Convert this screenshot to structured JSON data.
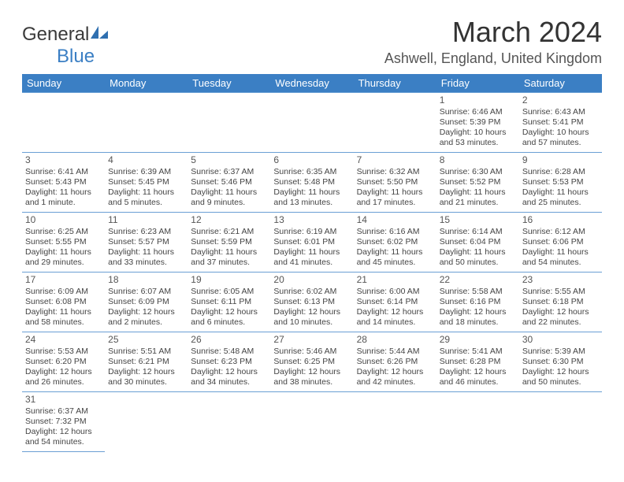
{
  "logo": {
    "part1": "General",
    "part2": "Blue"
  },
  "title": "March 2024",
  "location": "Ashwell, England, United Kingdom",
  "colors": {
    "header_bg": "#3b7fc4",
    "header_text": "#ffffff",
    "border": "#6a9fd4",
    "logo_blue": "#3b7fc4",
    "text": "#444444"
  },
  "weekdays": [
    "Sunday",
    "Monday",
    "Tuesday",
    "Wednesday",
    "Thursday",
    "Friday",
    "Saturday"
  ],
  "weeks": [
    [
      null,
      null,
      null,
      null,
      null,
      {
        "n": "1",
        "sunrise": "Sunrise: 6:46 AM",
        "sunset": "Sunset: 5:39 PM",
        "daylight": "Daylight: 10 hours and 53 minutes."
      },
      {
        "n": "2",
        "sunrise": "Sunrise: 6:43 AM",
        "sunset": "Sunset: 5:41 PM",
        "daylight": "Daylight: 10 hours and 57 minutes."
      }
    ],
    [
      {
        "n": "3",
        "sunrise": "Sunrise: 6:41 AM",
        "sunset": "Sunset: 5:43 PM",
        "daylight": "Daylight: 11 hours and 1 minute."
      },
      {
        "n": "4",
        "sunrise": "Sunrise: 6:39 AM",
        "sunset": "Sunset: 5:45 PM",
        "daylight": "Daylight: 11 hours and 5 minutes."
      },
      {
        "n": "5",
        "sunrise": "Sunrise: 6:37 AM",
        "sunset": "Sunset: 5:46 PM",
        "daylight": "Daylight: 11 hours and 9 minutes."
      },
      {
        "n": "6",
        "sunrise": "Sunrise: 6:35 AM",
        "sunset": "Sunset: 5:48 PM",
        "daylight": "Daylight: 11 hours and 13 minutes."
      },
      {
        "n": "7",
        "sunrise": "Sunrise: 6:32 AM",
        "sunset": "Sunset: 5:50 PM",
        "daylight": "Daylight: 11 hours and 17 minutes."
      },
      {
        "n": "8",
        "sunrise": "Sunrise: 6:30 AM",
        "sunset": "Sunset: 5:52 PM",
        "daylight": "Daylight: 11 hours and 21 minutes."
      },
      {
        "n": "9",
        "sunrise": "Sunrise: 6:28 AM",
        "sunset": "Sunset: 5:53 PM",
        "daylight": "Daylight: 11 hours and 25 minutes."
      }
    ],
    [
      {
        "n": "10",
        "sunrise": "Sunrise: 6:25 AM",
        "sunset": "Sunset: 5:55 PM",
        "daylight": "Daylight: 11 hours and 29 minutes."
      },
      {
        "n": "11",
        "sunrise": "Sunrise: 6:23 AM",
        "sunset": "Sunset: 5:57 PM",
        "daylight": "Daylight: 11 hours and 33 minutes."
      },
      {
        "n": "12",
        "sunrise": "Sunrise: 6:21 AM",
        "sunset": "Sunset: 5:59 PM",
        "daylight": "Daylight: 11 hours and 37 minutes."
      },
      {
        "n": "13",
        "sunrise": "Sunrise: 6:19 AM",
        "sunset": "Sunset: 6:01 PM",
        "daylight": "Daylight: 11 hours and 41 minutes."
      },
      {
        "n": "14",
        "sunrise": "Sunrise: 6:16 AM",
        "sunset": "Sunset: 6:02 PM",
        "daylight": "Daylight: 11 hours and 45 minutes."
      },
      {
        "n": "15",
        "sunrise": "Sunrise: 6:14 AM",
        "sunset": "Sunset: 6:04 PM",
        "daylight": "Daylight: 11 hours and 50 minutes."
      },
      {
        "n": "16",
        "sunrise": "Sunrise: 6:12 AM",
        "sunset": "Sunset: 6:06 PM",
        "daylight": "Daylight: 11 hours and 54 minutes."
      }
    ],
    [
      {
        "n": "17",
        "sunrise": "Sunrise: 6:09 AM",
        "sunset": "Sunset: 6:08 PM",
        "daylight": "Daylight: 11 hours and 58 minutes."
      },
      {
        "n": "18",
        "sunrise": "Sunrise: 6:07 AM",
        "sunset": "Sunset: 6:09 PM",
        "daylight": "Daylight: 12 hours and 2 minutes."
      },
      {
        "n": "19",
        "sunrise": "Sunrise: 6:05 AM",
        "sunset": "Sunset: 6:11 PM",
        "daylight": "Daylight: 12 hours and 6 minutes."
      },
      {
        "n": "20",
        "sunrise": "Sunrise: 6:02 AM",
        "sunset": "Sunset: 6:13 PM",
        "daylight": "Daylight: 12 hours and 10 minutes."
      },
      {
        "n": "21",
        "sunrise": "Sunrise: 6:00 AM",
        "sunset": "Sunset: 6:14 PM",
        "daylight": "Daylight: 12 hours and 14 minutes."
      },
      {
        "n": "22",
        "sunrise": "Sunrise: 5:58 AM",
        "sunset": "Sunset: 6:16 PM",
        "daylight": "Daylight: 12 hours and 18 minutes."
      },
      {
        "n": "23",
        "sunrise": "Sunrise: 5:55 AM",
        "sunset": "Sunset: 6:18 PM",
        "daylight": "Daylight: 12 hours and 22 minutes."
      }
    ],
    [
      {
        "n": "24",
        "sunrise": "Sunrise: 5:53 AM",
        "sunset": "Sunset: 6:20 PM",
        "daylight": "Daylight: 12 hours and 26 minutes."
      },
      {
        "n": "25",
        "sunrise": "Sunrise: 5:51 AM",
        "sunset": "Sunset: 6:21 PM",
        "daylight": "Daylight: 12 hours and 30 minutes."
      },
      {
        "n": "26",
        "sunrise": "Sunrise: 5:48 AM",
        "sunset": "Sunset: 6:23 PM",
        "daylight": "Daylight: 12 hours and 34 minutes."
      },
      {
        "n": "27",
        "sunrise": "Sunrise: 5:46 AM",
        "sunset": "Sunset: 6:25 PM",
        "daylight": "Daylight: 12 hours and 38 minutes."
      },
      {
        "n": "28",
        "sunrise": "Sunrise: 5:44 AM",
        "sunset": "Sunset: 6:26 PM",
        "daylight": "Daylight: 12 hours and 42 minutes."
      },
      {
        "n": "29",
        "sunrise": "Sunrise: 5:41 AM",
        "sunset": "Sunset: 6:28 PM",
        "daylight": "Daylight: 12 hours and 46 minutes."
      },
      {
        "n": "30",
        "sunrise": "Sunrise: 5:39 AM",
        "sunset": "Sunset: 6:30 PM",
        "daylight": "Daylight: 12 hours and 50 minutes."
      }
    ],
    [
      {
        "n": "31",
        "sunrise": "Sunrise: 6:37 AM",
        "sunset": "Sunset: 7:32 PM",
        "daylight": "Daylight: 12 hours and 54 minutes."
      },
      null,
      null,
      null,
      null,
      null,
      null
    ]
  ]
}
